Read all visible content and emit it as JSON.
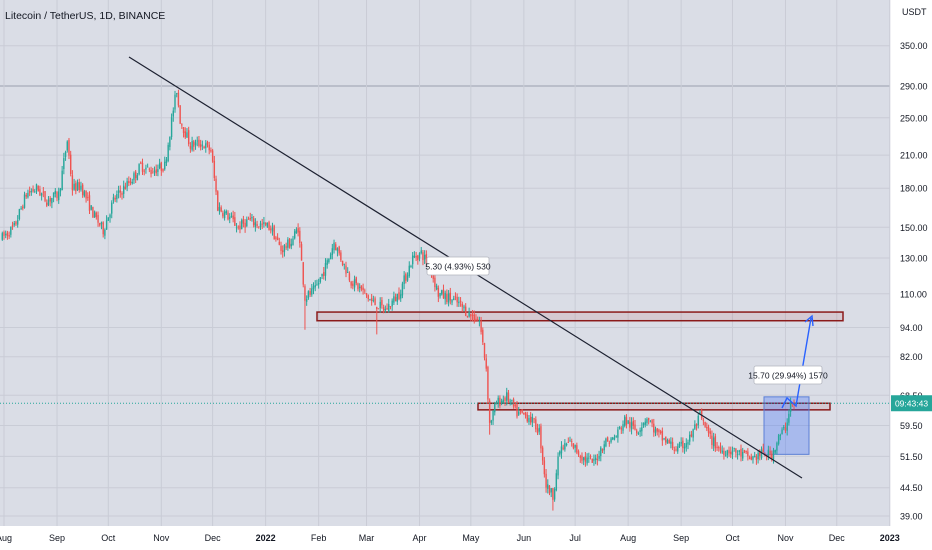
{
  "header": {
    "title": "Litecoin / TetherUS, 1D, BINANCE"
  },
  "price_scale": {
    "currency": "USDT",
    "ticks": [
      "350.00",
      "290.00",
      "250.00",
      "210.00",
      "180.00",
      "150.00",
      "130.00",
      "110.00",
      "94.00",
      "82.00",
      "68.50",
      "59.50",
      "51.50",
      "44.50",
      "39.00"
    ],
    "current_label": "09:43:43"
  },
  "time_axis": {
    "labels": [
      "Aug",
      "Sep",
      "Oct",
      "Nov",
      "Dec",
      "2022",
      "Feb",
      "Mar",
      "Apr",
      "May",
      "Jun",
      "Jul",
      "Aug",
      "Sep",
      "Oct",
      "Nov",
      "Dec",
      "2023"
    ]
  },
  "annotations": {
    "measure_1": "5.30 (4.93%) 530",
    "measure_2": "15.70 (29.94%) 1570"
  },
  "colors": {
    "background": "#dadde6",
    "up": "#26a69a",
    "down": "#ef5350",
    "zone_border": "#8b1a1a",
    "trendline": "#1c2030",
    "projection": "#2962ff",
    "price_line": "#26a69a"
  },
  "chart_data": {
    "type": "candlestick",
    "title": "Litecoin / TetherUS, 1D, BINANCE",
    "ylabel": "USDT",
    "y_scale": "log",
    "ylim": [
      37,
      410
    ],
    "x": [
      "2021-08",
      "2021-09",
      "2021-10",
      "2021-11",
      "2021-12",
      "2022-01",
      "2022-02",
      "2022-03",
      "2022-04",
      "2022-05",
      "2022-06",
      "2022-07",
      "2022-08",
      "2022-09",
      "2022-10",
      "2022-11"
    ],
    "close_monthly_approx": [
      172,
      180,
      190,
      260,
      155,
      130,
      115,
      120,
      120,
      97,
      55,
      60,
      60,
      55,
      52,
      66
    ],
    "current_price": 66.0,
    "resistance_zone": [
      97,
      101
    ],
    "support_zone": [
      64,
      66
    ],
    "measure_zone": [
      52,
      68
    ],
    "projection_target": 97
  }
}
